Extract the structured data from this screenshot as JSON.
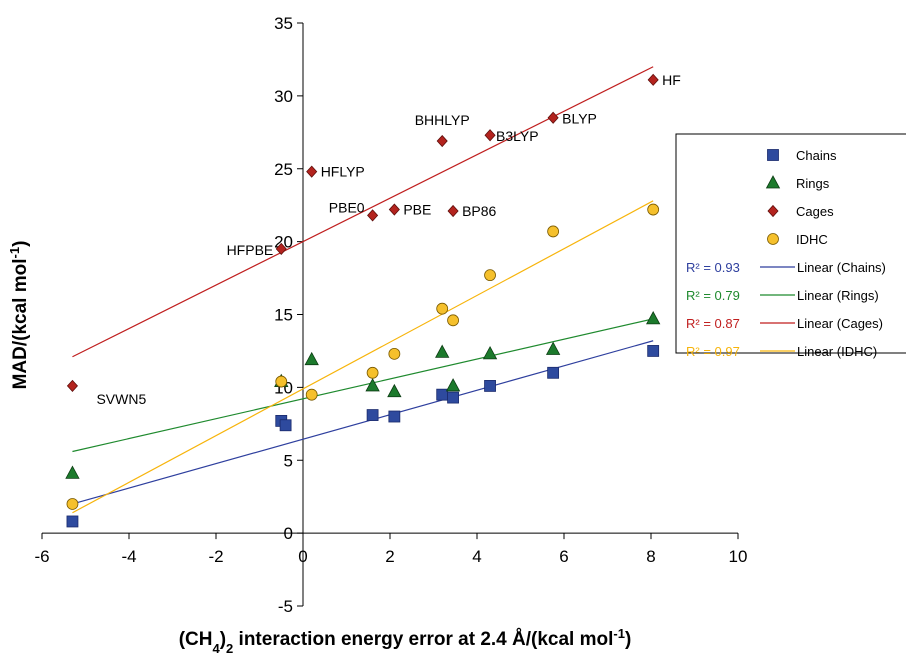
{
  "chart_data": {
    "type": "scatter",
    "xlim": [
      -6,
      10
    ],
    "ylim": [
      -5,
      35
    ],
    "x_ticks": [
      "-6",
      "-4",
      "-2",
      "0",
      "2",
      "4",
      "6",
      "8",
      "10"
    ],
    "y_ticks": [
      "-5",
      "0",
      "5",
      "10",
      "15",
      "20",
      "25",
      "30",
      "35"
    ],
    "xlabel": {
      "pre": "(CH",
      "sub1": "4",
      "mid1": ")",
      "sub2": "2",
      "mid2": " interaction energy error at 2.4 Å/(kcal mol",
      "sup": "-1",
      "post": ")"
    },
    "ylabel": {
      "pre": "MAD/(kcal mol",
      "sup": "-1",
      "post": ")"
    },
    "grid": false,
    "legend_position": "right",
    "series": [
      {
        "name": "Chains",
        "marker": "square",
        "color": "#2e4a9e",
        "x": [
          -5.3,
          -0.5,
          -0.4,
          1.6,
          2.1,
          3.2,
          3.45,
          4.3,
          5.75,
          8.05
        ],
        "y": [
          0.8,
          7.7,
          7.4,
          8.1,
          8.0,
          9.5,
          9.3,
          10.1,
          11.0,
          12.5
        ]
      },
      {
        "name": "Rings",
        "marker": "triangle",
        "color": "#1c7a2c",
        "x": [
          -5.3,
          -0.5,
          0.2,
          1.6,
          2.1,
          3.2,
          3.45,
          4.3,
          5.75,
          8.05
        ],
        "y": [
          4.1,
          10.4,
          11.9,
          10.1,
          9.7,
          12.4,
          10.1,
          12.3,
          12.6,
          14.7
        ]
      },
      {
        "name": "Cages",
        "marker": "diamond",
        "color": "#b3231e",
        "x": [
          -5.3,
          -0.5,
          0.2,
          1.6,
          2.1,
          3.2,
          3.45,
          4.3,
          5.75,
          8.05
        ],
        "y": [
          10.1,
          19.5,
          24.8,
          21.8,
          22.2,
          26.9,
          22.1,
          27.3,
          28.5,
          31.1
        ]
      },
      {
        "name": "IDHC",
        "marker": "circle",
        "color": "#f5c02c",
        "x": [
          -5.3,
          -0.5,
          0.2,
          1.6,
          2.1,
          3.2,
          3.45,
          4.3,
          5.75,
          8.05
        ],
        "y": [
          2.0,
          10.4,
          9.5,
          11.0,
          12.3,
          15.4,
          14.6,
          17.7,
          20.7,
          22.2
        ]
      }
    ],
    "point_labels": [
      {
        "text": "SVWN5",
        "x": -5.3,
        "y": 10.1,
        "anchor": "start"
      },
      {
        "text": "HFPBE",
        "x": -0.5,
        "y": 19.5,
        "anchor": "end"
      },
      {
        "text": "HFLYP",
        "x": 0.2,
        "y": 24.8,
        "anchor": "start"
      },
      {
        "text": "PBE0",
        "x": 1.6,
        "y": 21.8,
        "anchor": "end"
      },
      {
        "text": "PBE",
        "x": 2.1,
        "y": 22.2,
        "anchor": "start"
      },
      {
        "text": "BHHLYP",
        "x": 3.2,
        "y": 26.9,
        "anchor": "middle"
      },
      {
        "text": "BP86",
        "x": 3.45,
        "y": 22.1,
        "anchor": "start"
      },
      {
        "text": "B3LYP",
        "x": 4.3,
        "y": 27.3,
        "anchor": "start"
      },
      {
        "text": "BLYP",
        "x": 5.75,
        "y": 28.5,
        "anchor": "start"
      },
      {
        "text": "HF",
        "x": 8.05,
        "y": 31.1,
        "anchor": "start"
      }
    ],
    "trendlines": [
      {
        "name": "Linear (Chains)",
        "r2": "R² = 0.93",
        "color": "#2e3f9e",
        "x1": -5.3,
        "y1": 2.0,
        "x2": 8.05,
        "y2": 13.2
      },
      {
        "name": "Linear (Rings)",
        "r2": "R² = 0.79",
        "color": "#1f8a2e",
        "x1": -5.3,
        "y1": 5.6,
        "x2": 8.05,
        "y2": 14.7
      },
      {
        "name": "Linear (Cages)",
        "r2": "R² = 0.87",
        "color": "#c01f1f",
        "x1": -5.3,
        "y1": 12.1,
        "x2": 8.05,
        "y2": 32.0
      },
      {
        "name": "Linear (IDHC)",
        "r2": "R² = 0.97",
        "color": "#f7b40b",
        "x1": -5.3,
        "y1": 1.4,
        "x2": 8.05,
        "y2": 22.8
      }
    ]
  }
}
